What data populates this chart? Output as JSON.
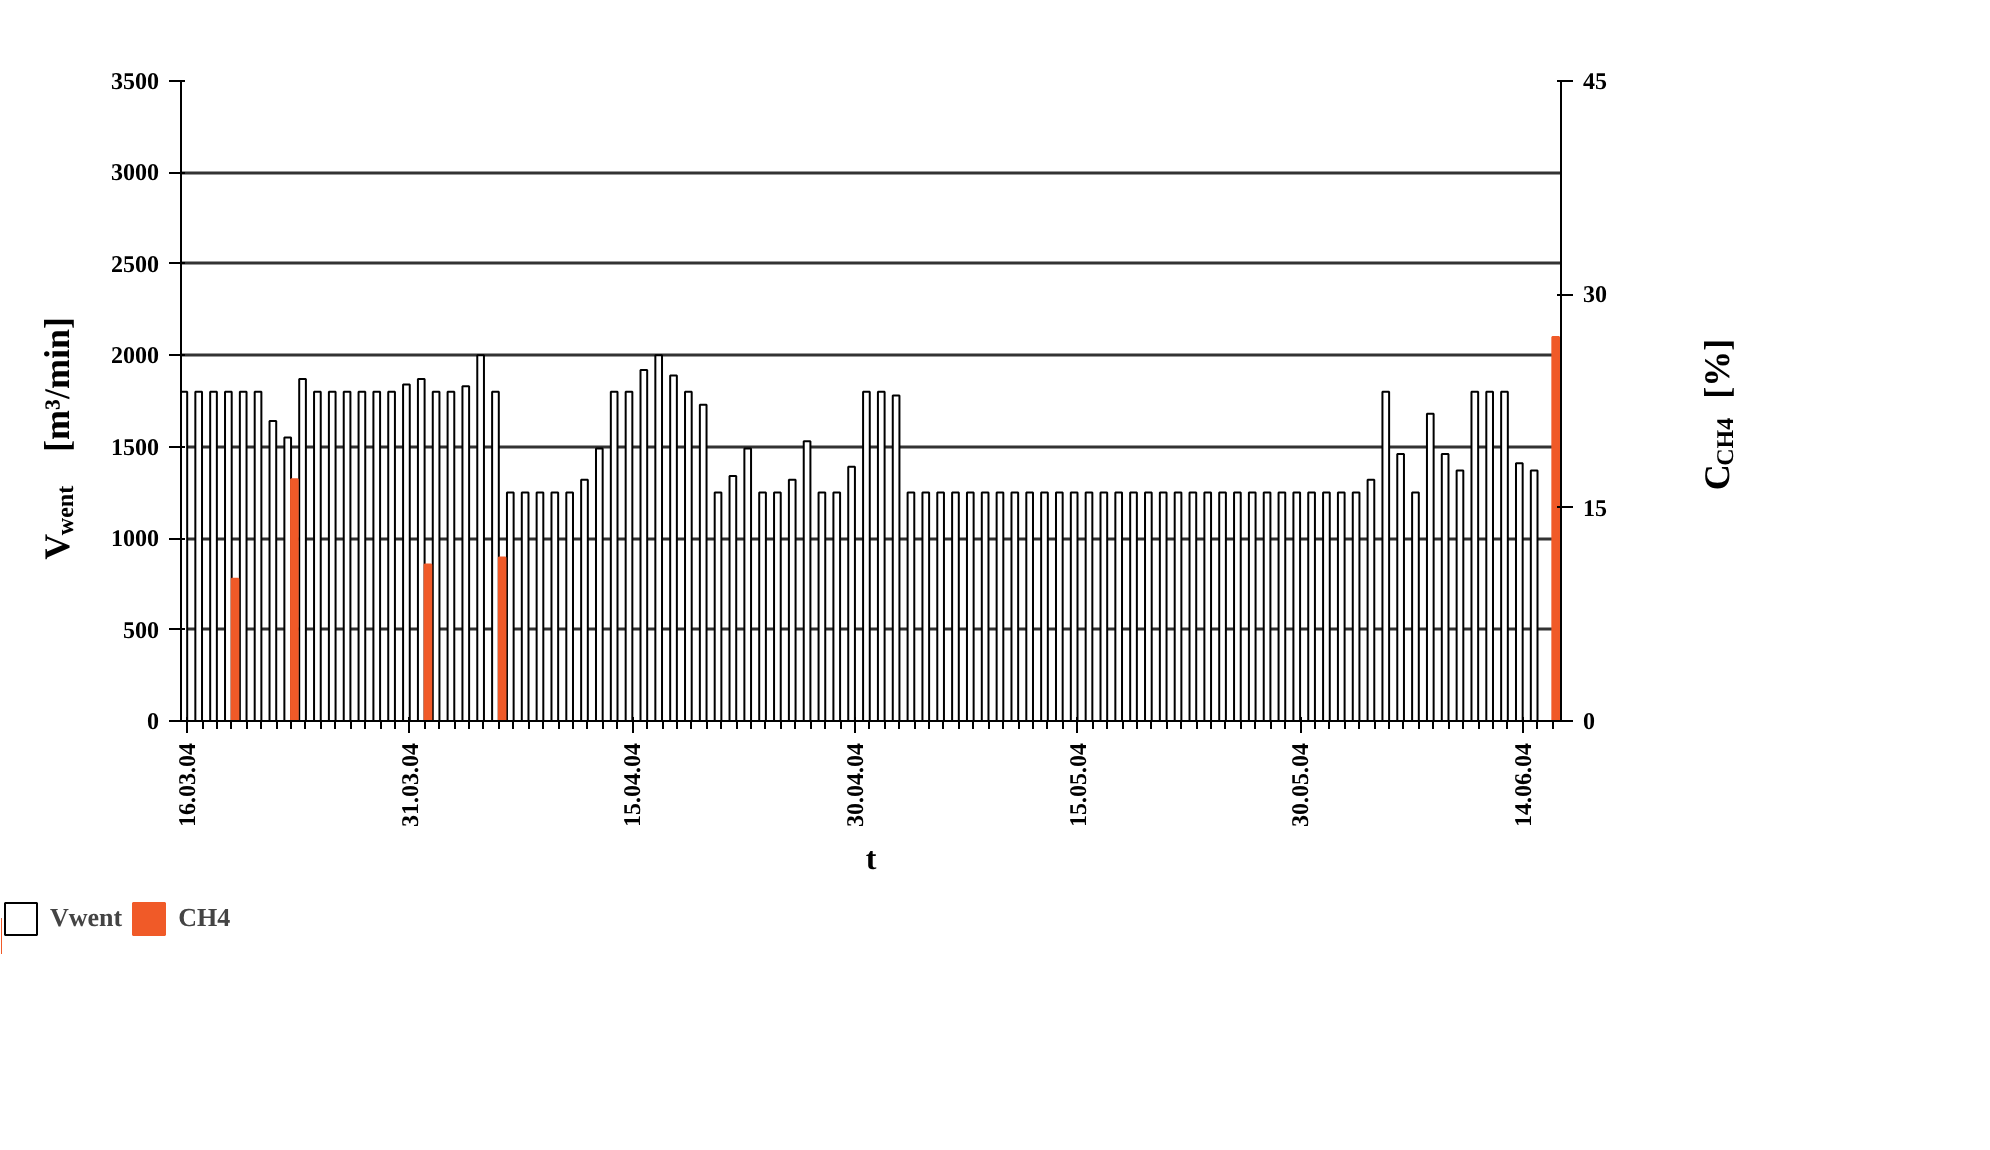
{
  "chart_data": {
    "type": "bar",
    "xlabel": "t",
    "ylabel": "V$_{went}$ [m³/min]",
    "y2label": "C$_{CH4}$ [%]",
    "x": [
      "2004-03-16",
      "2004-03-17",
      "2004-03-18",
      "2004-03-19",
      "2004-03-20",
      "2004-03-21",
      "2004-03-22",
      "2004-03-23",
      "2004-03-24",
      "2004-03-25",
      "2004-03-26",
      "2004-03-27",
      "2004-03-28",
      "2004-03-29",
      "2004-03-30",
      "2004-03-31",
      "2004-04-01",
      "2004-04-02",
      "2004-04-03",
      "2004-04-04",
      "2004-04-05",
      "2004-04-06",
      "2004-04-07",
      "2004-04-08",
      "2004-04-09",
      "2004-04-10",
      "2004-04-11",
      "2004-04-12",
      "2004-04-13",
      "2004-04-14",
      "2004-04-15",
      "2004-04-16",
      "2004-04-17",
      "2004-04-18",
      "2004-04-19",
      "2004-04-20",
      "2004-04-21",
      "2004-04-22",
      "2004-04-23",
      "2004-04-24",
      "2004-04-25",
      "2004-04-26",
      "2004-04-27",
      "2004-04-28",
      "2004-04-29",
      "2004-04-30",
      "2004-05-01",
      "2004-05-02",
      "2004-05-03",
      "2004-05-04",
      "2004-05-05",
      "2004-05-06",
      "2004-05-07",
      "2004-05-08",
      "2004-05-09",
      "2004-05-10",
      "2004-05-11",
      "2004-05-12",
      "2004-05-13",
      "2004-05-14",
      "2004-05-15",
      "2004-05-16",
      "2004-05-17",
      "2004-05-18",
      "2004-05-19",
      "2004-05-20",
      "2004-05-21",
      "2004-05-22",
      "2004-05-23",
      "2004-05-24",
      "2004-05-25",
      "2004-05-26",
      "2004-05-27",
      "2004-05-28",
      "2004-05-29",
      "2004-05-30",
      "2004-05-31",
      "2004-06-01",
      "2004-06-02",
      "2004-06-03",
      "2004-06-04",
      "2004-06-05",
      "2004-06-06",
      "2004-06-07",
      "2004-06-08",
      "2004-06-09",
      "2004-06-10",
      "2004-06-11",
      "2004-06-12",
      "2004-06-13",
      "2004-06-14",
      "2004-06-15"
    ],
    "series": [
      {
        "name": "Vwent",
        "color": "#ffffff",
        "values": [
          1800,
          1800,
          1800,
          1800,
          1800,
          1800,
          1640,
          1550,
          1870,
          1800,
          1800,
          1800,
          1800,
          1800,
          1800,
          1840,
          1870,
          1800,
          1800,
          1830,
          2000,
          1800,
          1250,
          1250,
          1250,
          1250,
          1250,
          1320,
          1490,
          1800,
          1800,
          1920,
          2000,
          1890,
          1800,
          1730,
          1250,
          1340,
          1490,
          1250,
          1250,
          1320,
          1530,
          1250,
          1250,
          1390,
          1800,
          1800,
          1780,
          1250,
          1250,
          1250,
          1250,
          1250,
          1250,
          1250,
          1250,
          1250,
          1250,
          1250,
          1250,
          1250,
          1250,
          1250,
          1250,
          1250,
          1250,
          1250,
          1250,
          1250,
          1250,
          1250,
          1250,
          1250,
          1250,
          1250,
          1250,
          1250,
          1250,
          1250,
          1320,
          1800,
          1460,
          1250,
          1680,
          1460,
          1370,
          1800,
          1800,
          1800,
          1410,
          1370
        ]
      },
      {
        "name": "CH4",
        "color": "#f05a28",
        "axis": "y2",
        "x": [
          "2004-03-19",
          "2004-03-23",
          "2004-04-01",
          "2004-04-06",
          "2004-06-16"
        ],
        "values": [
          10,
          17,
          11,
          11.5,
          27
        ]
      }
    ],
    "xlim": [
      "2004-03-15T14:00",
      "2004-06-16T14:00"
    ],
    "xticks": [
      {
        "value": "2004-03-16",
        "label": "16.03.04"
      },
      {
        "value": "2004-03-31",
        "label": "31.03.04"
      },
      {
        "value": "2004-04-15",
        "label": "15.04.04"
      },
      {
        "value": "2004-04-30",
        "label": "30.04.04"
      },
      {
        "value": "2004-05-15",
        "label": "15.05.04"
      },
      {
        "value": "2004-05-30",
        "label": "30.05.04"
      },
      {
        "value": "2004-06-14",
        "label": "14.06.04"
      }
    ],
    "ylim": [
      0,
      3500
    ],
    "yticks": [
      0,
      500,
      1000,
      1500,
      2000,
      2500,
      3000,
      3500
    ],
    "y2lim": [
      0,
      45
    ],
    "y2ticks": [
      0,
      15,
      30,
      45
    ],
    "grid": "y",
    "legend": "bottom left"
  }
}
